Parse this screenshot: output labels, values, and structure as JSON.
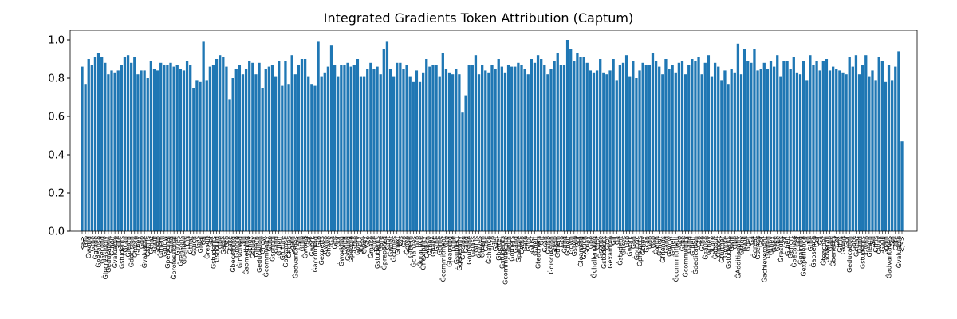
{
  "chart_data": {
    "type": "bar",
    "title": "Integrated Gradients Token Attribution (Captum)",
    "color": "#1f77b4",
    "categories": [
      "<s>",
      "ĠTo",
      "Ġworld",
      "Ġthe",
      "Ġgrade",
      "Ġbecause",
      "Ġsecond",
      "Ġincreasingly",
      "Ġeducation",
      "Ġtheir",
      "Ġvaluable",
      "Ġlife",
      "Ġstudents",
      "Ġcan",
      "Ġlearn",
      "Ġdecision",
      "Ġmore",
      "Ġthey",
      "Ġdo",
      "Ġvaluable",
      "Ġskills",
      "Ġthat",
      "Ġwill",
      "Ġhelp",
      "Ġthem",
      "Ġgrow",
      "Ġpersonal",
      "Ġand",
      "Ġprofessional",
      "Ġlives",
      "Ġreasons",
      "Ġbelieve",
      "Ġis",
      "Ġthat",
      "Ġsuch",
      "Ġas",
      "Ġreal",
      "Ġa",
      "Ġresult",
      "Ġof",
      "Ġstudents",
      "Ġshould",
      "Ġbe",
      "Ġable",
      "Ġto",
      "Ġtake",
      "Ġbecoming",
      "Ġmore",
      "Ġinvolved",
      "Ġin",
      "Ġsomething",
      "Ġthey",
      "Ġstudy",
      "Ġlearn",
      "Ġeducation",
      "Ġhow",
      "Ġcommunity",
      "Ġthe",
      "Ġschool",
      "Ġand",
      "Ġtheir",
      "Ġfuture",
      "Ġbecause",
      "Ġhelps",
      "Ġgain",
      "Ġadvantages",
      "Ġin",
      "Ġthe",
      "Ġworld",
      "Ġof",
      "Ġwork",
      "Ġaccording",
      "Ġto",
      "Ġexperts",
      "Ġwho",
      "Ġhave",
      "Ġa",
      "Ġlot",
      "Ġof",
      "Ġworking",
      "Ġwith",
      "Ġyoung",
      "Ġpeople",
      "Ġthe",
      "Ġvery",
      "Ġbest",
      "Ġway",
      "Ġto",
      "Ġmake",
      "Ġsure",
      "Ġstudents",
      "Ġare",
      "Ġprepared",
      "Ġfor",
      "Ġwhat",
      "Ġcomes",
      "Ġnext",
      "Ġis",
      "Ġto",
      "Ġgive",
      "Ġthem",
      "Ġchances",
      "Ġto",
      "Ġpractice",
      "Ġflexibility",
      "Ġwhen",
      "Ġthey",
      "Ġhave",
      "Ġthe",
      "Ġtime",
      "Ġcommitment",
      "Ġto",
      "Ġlearning",
      "Ġthe",
      "Ġsubject",
      "Ġgenerally",
      "Ġinside",
      "Ġand",
      "Ġoutside",
      "Ġclass",
      "Ġthis",
      "Ġgives",
      "Ġthem",
      "Ġthe",
      "Ġchance",
      "Ġto",
      "Ġget",
      "Ġbetter",
      "Ġstudents",
      "Ġcommunicate",
      "Ġwith",
      "Ġothers",
      "Ġand",
      "Ġpeople",
      "Ġwho",
      "Ġare",
      "Ġnot",
      "Ġjust",
      "Ġtheir",
      "Ġteachers",
      "Ġit",
      "Ġcan",
      "Ġalso",
      "Ġdiscussion",
      "Ġhelp",
      "Ġthem",
      "Ġto",
      "Ġfind",
      "Ġtheir",
      "Ġown",
      "Ġstyle",
      "Ġof",
      "Ġlearning",
      "Ġwhich",
      "Ġmay",
      "Ġbe",
      "Ġchallenging",
      "Ġfor",
      "Ġsome",
      "Ġstudents",
      "Ġfor",
      "Ġexample",
      "Ġif",
      "Ġa",
      "Ġstudent",
      "Ġlikes",
      "Ġto",
      "Ġwork",
      "Ġon",
      "Ġpublic",
      "Ġprojects",
      "Ġthey",
      "Ġcan",
      "Ġdo",
      "Ġso",
      "Ġwith",
      "Ġtheir",
      "Ġfriends",
      "Ġand",
      "Ġgrow",
      "Ġtheir",
      "Ġcommitment",
      "Ġto",
      "Ġthe",
      "Ġcommunity",
      "Ġand",
      "Ġtheir",
      "Ġdedication",
      "Ġto",
      "Ġthe",
      "Ġcause",
      "Ġthey",
      "Ġcare",
      "Ġabout",
      "Ġmost",
      "Ġfurther",
      "Ġmore",
      "Ġstudents",
      "Ġwill",
      "Ġbe",
      "ĠAdditionally",
      "Ġthey",
      "Ġwill",
      "Ġget",
      "Ġa",
      "Ġgreat",
      "Ġsense",
      "Ġof",
      "Ġachievement",
      "Ġwhen",
      "Ġthey",
      "Ġsee",
      "Ġthe",
      "Ġresults",
      "Ġof",
      "Ġtheir",
      "Ġeffort",
      "Ġbecause",
      "Ġof",
      "Ġgaining",
      "Ġexperience",
      "Ġin",
      "Ġthe",
      "Ġabsence",
      "Ġof",
      "Ġa",
      "Ġteacher",
      "Ġoverall",
      "Ġthe",
      "Ġbenefits",
      "Ġof",
      "Ġthis",
      "Ġkind",
      "Ġof",
      "Ġeducation",
      "Ġare",
      "Ġclear",
      "Ġand",
      "Ġstudents",
      "Ġwho",
      "Ġlearn",
      "Ġin",
      "Ġthis",
      "Ġway",
      "Ġwill",
      "Ġgain",
      "Ġadvantages",
      "Ġin",
      "Ġlife",
      "Ġvaluable",
      "</s>"
    ],
    "values": [
      0.86,
      0.77,
      0.9,
      0.87,
      0.91,
      0.93,
      0.91,
      0.88,
      0.82,
      0.84,
      0.83,
      0.84,
      0.87,
      0.91,
      0.92,
      0.88,
      0.91,
      0.82,
      0.84,
      0.84,
      0.8,
      0.89,
      0.85,
      0.84,
      0.88,
      0.87,
      0.87,
      0.88,
      0.86,
      0.87,
      0.85,
      0.84,
      0.89,
      0.87,
      0.75,
      0.79,
      0.78,
      0.99,
      0.79,
      0.86,
      0.87,
      0.9,
      0.92,
      0.91,
      0.86,
      0.69,
      0.8,
      0.85,
      0.87,
      0.82,
      0.85,
      0.89,
      0.88,
      0.82,
      0.88,
      0.75,
      0.85,
      0.86,
      0.87,
      0.81,
      0.89,
      0.76,
      0.89,
      0.77,
      0.92,
      0.82,
      0.87,
      0.9,
      0.9,
      0.81,
      0.77,
      0.76,
      0.99,
      0.81,
      0.83,
      0.86,
      0.97,
      0.87,
      0.81,
      0.87,
      0.87,
      0.88,
      0.86,
      0.87,
      0.9,
      0.81,
      0.81,
      0.85,
      0.88,
      0.85,
      0.86,
      0.82,
      0.95,
      0.99,
      0.85,
      0.81,
      0.88,
      0.88,
      0.85,
      0.87,
      0.81,
      0.78,
      0.84,
      0.78,
      0.83,
      0.9,
      0.86,
      0.87,
      0.87,
      0.81,
      0.93,
      0.85,
      0.83,
      0.82,
      0.85,
      0.82,
      0.62,
      0.71,
      0.87,
      0.87,
      0.92,
      0.82,
      0.87,
      0.84,
      0.83,
      0.87,
      0.85,
      0.9,
      0.86,
      0.83,
      0.87,
      0.86,
      0.86,
      0.88,
      0.87,
      0.85,
      0.82,
      0.9,
      0.88,
      0.92,
      0.9,
      0.87,
      0.82,
      0.85,
      0.89,
      0.93,
      0.87,
      0.87,
      1.0,
      0.95,
      0.89,
      0.93,
      0.91,
      0.91,
      0.88,
      0.84,
      0.83,
      0.84,
      0.9,
      0.83,
      0.82,
      0.84,
      0.9,
      0.79,
      0.87,
      0.88,
      0.92,
      0.81,
      0.89,
      0.8,
      0.84,
      0.88,
      0.87,
      0.87,
      0.93,
      0.89,
      0.86,
      0.82,
      0.9,
      0.85,
      0.87,
      0.83,
      0.88,
      0.89,
      0.82,
      0.87,
      0.9,
      0.89,
      0.91,
      0.82,
      0.88,
      0.92,
      0.81,
      0.88,
      0.86,
      0.79,
      0.84,
      0.77,
      0.85,
      0.83,
      0.98,
      0.82,
      0.95,
      0.89,
      0.88,
      0.95,
      0.84,
      0.85,
      0.88,
      0.85,
      0.89,
      0.86,
      0.92,
      0.81,
      0.89,
      0.89,
      0.85,
      0.91,
      0.83,
      0.82,
      0.89,
      0.79,
      0.92,
      0.87,
      0.89,
      0.84,
      0.89,
      0.9,
      0.84,
      0.86,
      0.85,
      0.84,
      0.83,
      0.82,
      0.91,
      0.86,
      0.92,
      0.82,
      0.87,
      0.92,
      0.81,
      0.84,
      0.79,
      0.91,
      0.89,
      0.78,
      0.87,
      0.79,
      0.86,
      0.94,
      0.47
    ],
    "ylim": [
      0,
      1.05
    ],
    "yticks": [
      {
        "value": 0,
        "label": "0.0"
      },
      {
        "value": 0.2,
        "label": "0.2"
      },
      {
        "value": 0.4,
        "label": "0.4"
      },
      {
        "value": 0.6,
        "label": "0.6"
      },
      {
        "value": 0.8,
        "label": "0.8"
      },
      {
        "value": 1.0,
        "label": "1.0"
      }
    ],
    "grid": false
  }
}
